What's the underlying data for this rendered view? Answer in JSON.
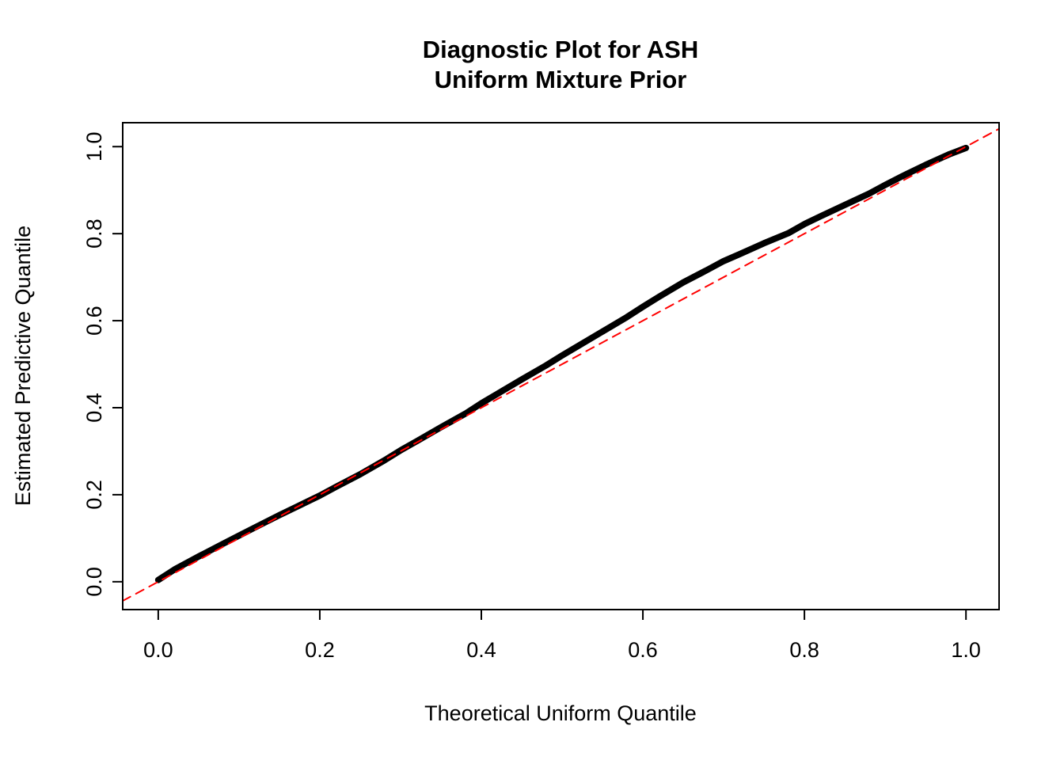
{
  "chart_data": {
    "type": "scatter",
    "title": "Diagnostic Plot for ASH\nUniform Mixture Prior",
    "title_line1": "Diagnostic Plot for ASH",
    "title_line2": "Uniform Mixture Prior",
    "xlabel": "Theoretical Uniform Quantile",
    "ylabel": "Estimated Predictive Quantile",
    "xlim": [
      -0.044,
      1.041
    ],
    "ylim": [
      -0.064,
      1.055
    ],
    "x_ticks": [
      0.0,
      0.2,
      0.4,
      0.6,
      0.8,
      1.0
    ],
    "y_ticks": [
      0.0,
      0.2,
      0.4,
      0.6,
      0.8,
      1.0
    ],
    "x_tick_labels": [
      "0.0",
      "0.2",
      "0.4",
      "0.6",
      "0.8",
      "1.0"
    ],
    "y_tick_labels": [
      "0.0",
      "0.2",
      "0.4",
      "0.6",
      "0.8",
      "1.0"
    ],
    "grid": false,
    "legend": "none",
    "colors": {
      "curve": "#000000",
      "reference_line": "#FF0000",
      "background": "#FFFFFF",
      "box": "#000000"
    },
    "series": [
      {
        "name": "estimated-predictive-quantile-curve",
        "kind": "line",
        "color": "#000000",
        "width": 8,
        "dash": "",
        "points": [
          [
            0.0,
            0.004
          ],
          [
            0.02,
            0.028
          ],
          [
            0.05,
            0.058
          ],
          [
            0.08,
            0.087
          ],
          [
            0.1,
            0.106
          ],
          [
            0.12,
            0.125
          ],
          [
            0.15,
            0.153
          ],
          [
            0.18,
            0.18
          ],
          [
            0.2,
            0.198
          ],
          [
            0.22,
            0.218
          ],
          [
            0.25,
            0.247
          ],
          [
            0.28,
            0.279
          ],
          [
            0.3,
            0.302
          ],
          [
            0.32,
            0.323
          ],
          [
            0.35,
            0.355
          ],
          [
            0.38,
            0.386
          ],
          [
            0.4,
            0.41
          ],
          [
            0.42,
            0.432
          ],
          [
            0.45,
            0.465
          ],
          [
            0.48,
            0.497
          ],
          [
            0.5,
            0.52
          ],
          [
            0.52,
            0.542
          ],
          [
            0.55,
            0.575
          ],
          [
            0.58,
            0.608
          ],
          [
            0.6,
            0.632
          ],
          [
            0.62,
            0.655
          ],
          [
            0.65,
            0.688
          ],
          [
            0.68,
            0.717
          ],
          [
            0.7,
            0.737
          ],
          [
            0.72,
            0.753
          ],
          [
            0.75,
            0.778
          ],
          [
            0.78,
            0.801
          ],
          [
            0.8,
            0.822
          ],
          [
            0.82,
            0.84
          ],
          [
            0.85,
            0.866
          ],
          [
            0.88,
            0.892
          ],
          [
            0.9,
            0.912
          ],
          [
            0.92,
            0.931
          ],
          [
            0.95,
            0.958
          ],
          [
            0.98,
            0.983
          ],
          [
            1.0,
            0.997
          ]
        ]
      },
      {
        "name": "identity-reference-line",
        "kind": "dashed-line",
        "color": "#FF0000",
        "width": 2,
        "dash": "11 8",
        "points": [
          [
            -0.044,
            -0.044
          ],
          [
            1.041,
            1.041
          ]
        ]
      }
    ]
  }
}
